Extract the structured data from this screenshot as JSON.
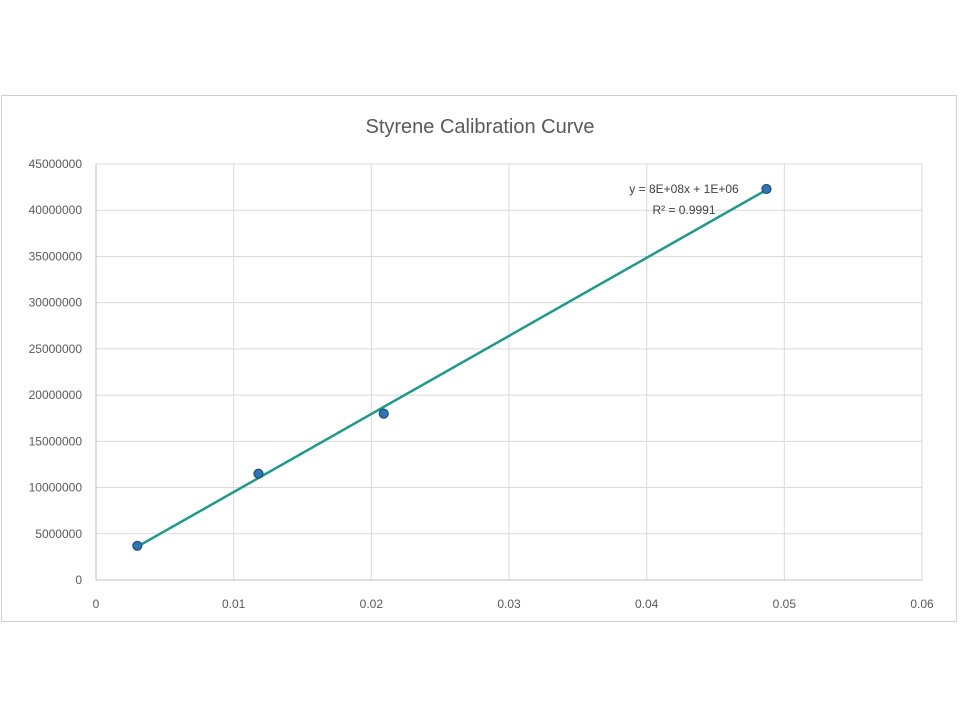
{
  "chart_data": {
    "type": "scatter",
    "title": "Styrene Calibration Curve",
    "xlabel": "",
    "ylabel": "",
    "xlim": [
      0,
      0.06
    ],
    "ylim": [
      0,
      45000000
    ],
    "x_ticks": [
      "0",
      "0.01",
      "0.02",
      "0.03",
      "0.04",
      "0.05",
      "0.06"
    ],
    "y_ticks": [
      "0",
      "5000000",
      "10000000",
      "15000000",
      "20000000",
      "25000000",
      "30000000",
      "35000000",
      "40000000",
      "45000000"
    ],
    "grid": true,
    "legend": "none",
    "series": [
      {
        "x": [
          0.003,
          0.0118,
          0.0209,
          0.0487
        ],
        "y": [
          3700000,
          11500000,
          18000000,
          42300000
        ],
        "color": "#2e75b6"
      }
    ],
    "trendline": {
      "type": "linear",
      "x": [
        0.003,
        0.0487
      ],
      "y": [
        3600000,
        42200000
      ],
      "color": "#1f9a8a",
      "equation": "y = 8E+08x + 1E+06",
      "r_squared": "R² = 0.9991"
    }
  }
}
